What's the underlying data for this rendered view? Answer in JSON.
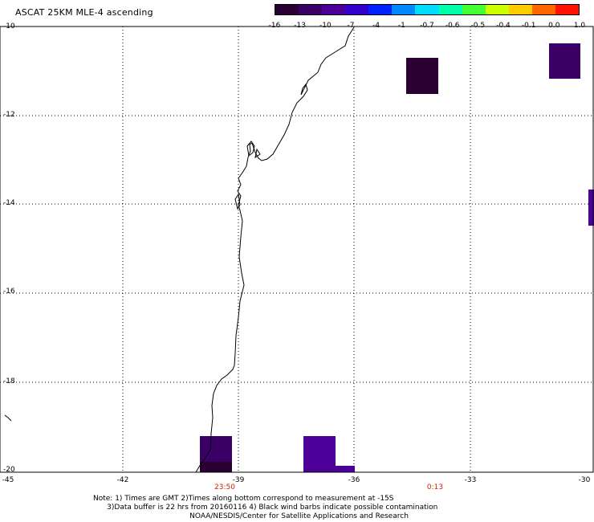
{
  "title": "ASCAT 25KM MLE-4 ascending",
  "colorbar": {
    "labels": [
      "-16",
      "-13",
      "-10",
      "-7",
      "-4",
      "-1",
      "-0.7",
      "-0.6",
      "-0.5",
      "-0.4",
      "-0.1",
      "0.0",
      "1.0"
    ],
    "colors": [
      "#2a0033",
      "#3b0066",
      "#4d0099",
      "#3300cc",
      "#0022ff",
      "#0088ff",
      "#00ddff",
      "#00ffaa",
      "#44ff33",
      "#ccff00",
      "#ffcc00",
      "#ff6600",
      "#ff1100"
    ]
  },
  "map": {
    "lat_labels": [
      "-10",
      "-12",
      "-14",
      "-16",
      "-18",
      "-20"
    ],
    "lon_labels": [
      "-45",
      "-42",
      "-39",
      "-36",
      "-33",
      "-30"
    ],
    "times": [
      "23:50",
      "0:13"
    ],
    "cell_colors": {
      "dark": "#2a0033",
      "purple": "#3b0066",
      "violet": "#4d0099"
    }
  },
  "notes": [
    "Note: 1) Times are GMT 2)Times along bottom correspond to measurement at -15S",
    "      3)Data buffer is 22 hrs from 20160116 4) Black wind barbs indicate possible contamination",
    "                                          NOAA/NESDIS/Center for Satellite Applications and Research"
  ]
}
